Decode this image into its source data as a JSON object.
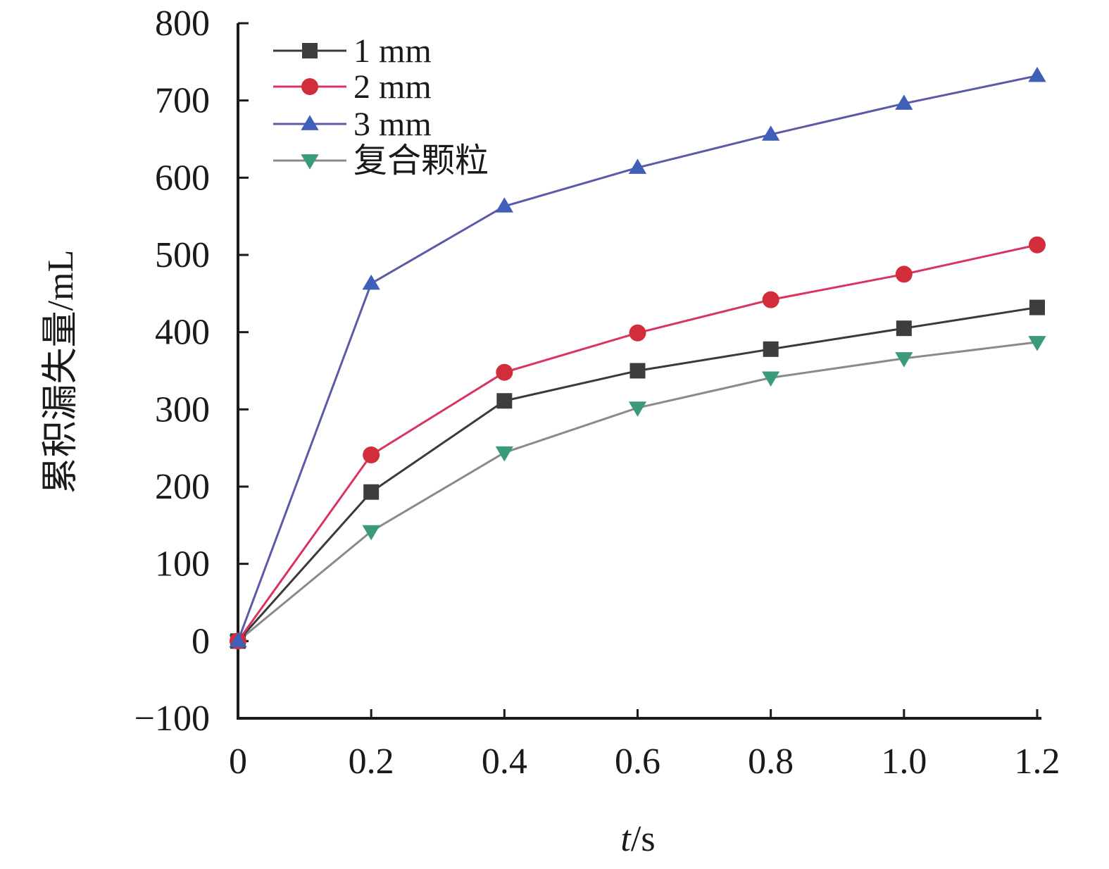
{
  "chart_data": {
    "type": "line",
    "xlabel": "t/s",
    "xlabel_italic_part": "t",
    "xlabel_rest": "/s",
    "ylabel": "累积漏失量/mL",
    "xlim": [
      0,
      1.2
    ],
    "ylim": [
      -100,
      800
    ],
    "x": [
      0,
      0.2,
      0.4,
      0.6,
      0.8,
      1.0,
      1.2
    ],
    "x_tick_labels": [
      "0",
      "0.2",
      "0.4",
      "0.6",
      "0.8",
      "1.0",
      "1.2"
    ],
    "y_ticks": [
      -100,
      0,
      100,
      200,
      300,
      400,
      500,
      600,
      700,
      800
    ],
    "y_tick_labels": [
      "−100",
      "0",
      "100",
      "200",
      "300",
      "400",
      "500",
      "600",
      "700",
      "800"
    ],
    "grid": false,
    "legend_position": "top-left",
    "series": [
      {
        "name": "1 mm",
        "marker": "square",
        "line_color": "#3a3a3a",
        "marker_color": "#3d3d3d",
        "values": [
          0,
          193,
          311,
          350,
          378,
          405,
          432
        ]
      },
      {
        "name": "2 mm",
        "marker": "circle",
        "line_color": "#d9345f",
        "marker_color": "#d12d3a",
        "values": [
          0,
          241,
          348,
          399,
          442,
          475,
          513
        ]
      },
      {
        "name": "3 mm",
        "marker": "triangle-up",
        "line_color": "#5a5aa8",
        "marker_color": "#3f5fb8",
        "values": [
          0,
          463,
          563,
          613,
          656,
          696,
          732
        ]
      },
      {
        "name": "复合颗粒",
        "marker": "triangle-down",
        "line_color": "#8a8a8a",
        "marker_color": "#3a9a7a",
        "values": [
          0,
          142,
          244,
          302,
          341,
          366,
          387
        ]
      }
    ]
  }
}
